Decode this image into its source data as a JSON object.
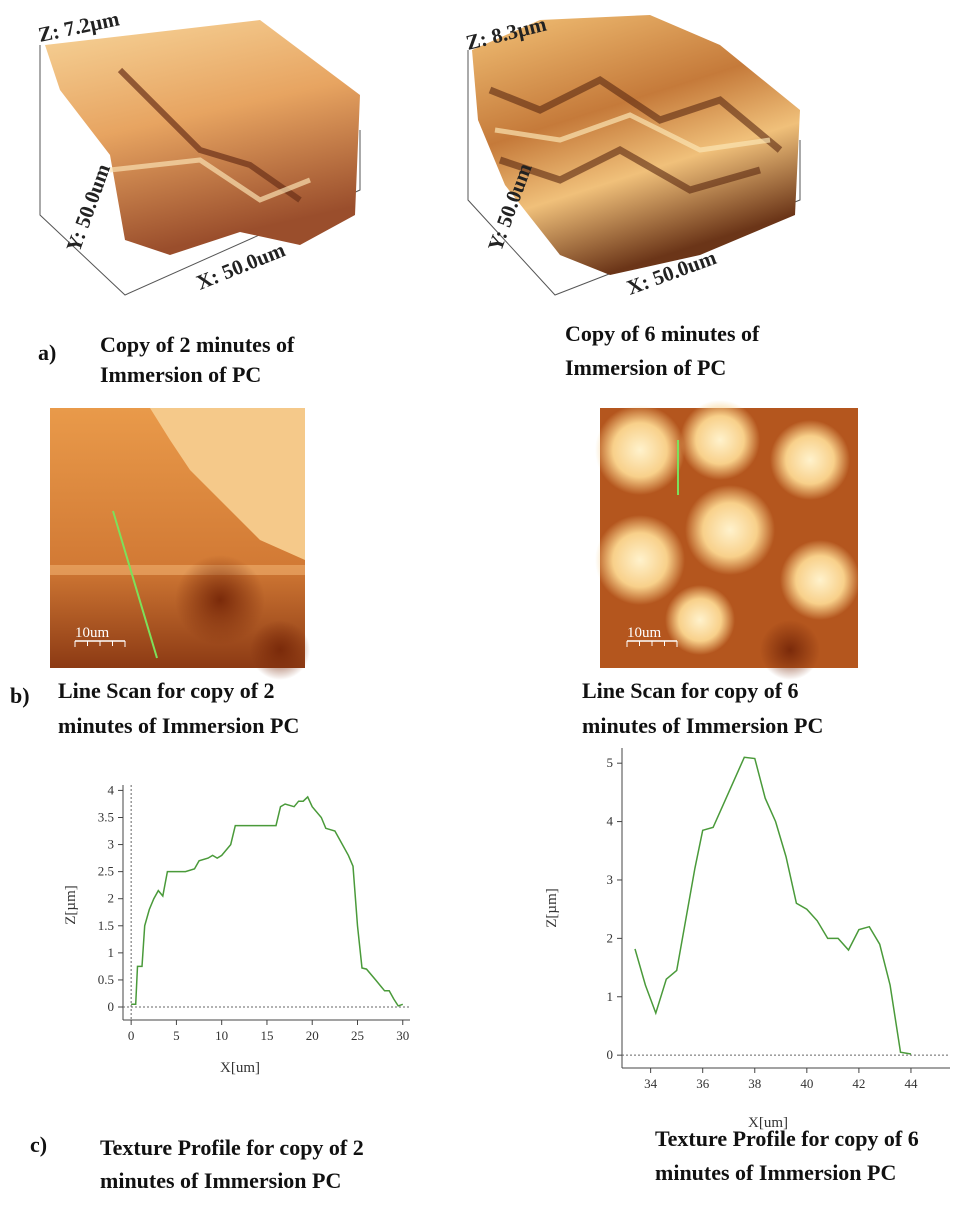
{
  "panel_a": {
    "label": "a)",
    "images": [
      {
        "z_label": "Z: 7.2µm",
        "y_label": "Y: 50.0um",
        "x_label": "X: 50.0um",
        "caption": [
          "Copy of 2 minutes of",
          "Immersion of PC"
        ]
      },
      {
        "z_label": "Z: 8.3µm",
        "y_label": "Y: 50.0um",
        "x_label": "X: 50.0um",
        "caption": [
          "Copy of 6 minutes of",
          "Immersion of PC"
        ]
      }
    ]
  },
  "panel_b": {
    "label": "b)",
    "images": [
      {
        "scale_label": "10um",
        "caption": [
          "Line Scan for copy of 2",
          "minutes of Immersion PC"
        ]
      },
      {
        "scale_label": "10um",
        "caption": [
          "Line Scan for copy of 6",
          "minutes of Immersion PC"
        ]
      }
    ]
  },
  "chart_data": [
    {
      "type": "line",
      "xlabel": "X[um]",
      "ylabel": "Z[µm]",
      "color": "#4a9a3a",
      "x": [
        0,
        0.5,
        0.7,
        1.2,
        1.5,
        2,
        2.5,
        3,
        3.5,
        4,
        5,
        6,
        7,
        7.5,
        8.5,
        9,
        9.5,
        10,
        10.5,
        11,
        11.5,
        13,
        15,
        16,
        16.5,
        17,
        18,
        18.5,
        19,
        19.5,
        20,
        21,
        21.5,
        22.5,
        23,
        24,
        24.5,
        25,
        25.5,
        26,
        27,
        28,
        28.5,
        29,
        29.5,
        30
      ],
      "values": [
        0.05,
        0.05,
        0.75,
        0.75,
        1.5,
        1.8,
        2,
        2.15,
        2.05,
        2.5,
        2.5,
        2.5,
        2.55,
        2.7,
        2.75,
        2.8,
        2.75,
        2.8,
        2.9,
        3.0,
        3.35,
        3.35,
        3.35,
        3.35,
        3.7,
        3.75,
        3.7,
        3.8,
        3.8,
        3.88,
        3.7,
        3.5,
        3.3,
        3.25,
        3.1,
        2.8,
        2.6,
        1.5,
        0.72,
        0.7,
        0.5,
        0.3,
        0.3,
        0.15,
        0.02,
        0.05
      ],
      "xlim": [
        -0.9,
        30.8
      ],
      "ylim": [
        -0.24,
        4.1
      ],
      "xticks": [
        0,
        5,
        10,
        15,
        20,
        25,
        30
      ],
      "yticks": [
        0,
        0.5,
        1,
        1.5,
        2,
        2.5,
        3,
        3.5,
        4
      ]
    },
    {
      "type": "line",
      "xlabel": "X[um]",
      "ylabel": "Z[µm]",
      "color": "#4a9a3a",
      "x": [
        33.4,
        33.8,
        34.2,
        34.6,
        35,
        35.3,
        35.7,
        36,
        36.4,
        36.8,
        37.2,
        37.6,
        38,
        38.4,
        38.8,
        39.2,
        39.6,
        40,
        40.4,
        40.8,
        41.2,
        41.6,
        42,
        42.4,
        42.8,
        43.2,
        43.6,
        44
      ],
      "values": [
        1.82,
        1.2,
        0.72,
        1.3,
        1.45,
        2.2,
        3.2,
        3.85,
        3.9,
        4.3,
        4.7,
        5.1,
        5.08,
        4.4,
        4.0,
        3.4,
        2.6,
        2.5,
        2.3,
        2.0,
        2.0,
        1.8,
        2.15,
        2.2,
        1.9,
        1.2,
        0.05,
        0.02
      ],
      "xlim": [
        32.9,
        45.5
      ],
      "ylim": [
        -0.22,
        5.26
      ],
      "xticks": [
        34,
        36,
        38,
        40,
        42,
        44
      ],
      "yticks": [
        0,
        1,
        2,
        3,
        4,
        5
      ]
    }
  ],
  "panel_c": {
    "label": "c)",
    "captions": [
      [
        "Texture Profile for copy of 2",
        "minutes of Immersion PC"
      ],
      [
        "Texture Profile for copy of 6",
        "minutes of Immersion PC"
      ]
    ]
  }
}
